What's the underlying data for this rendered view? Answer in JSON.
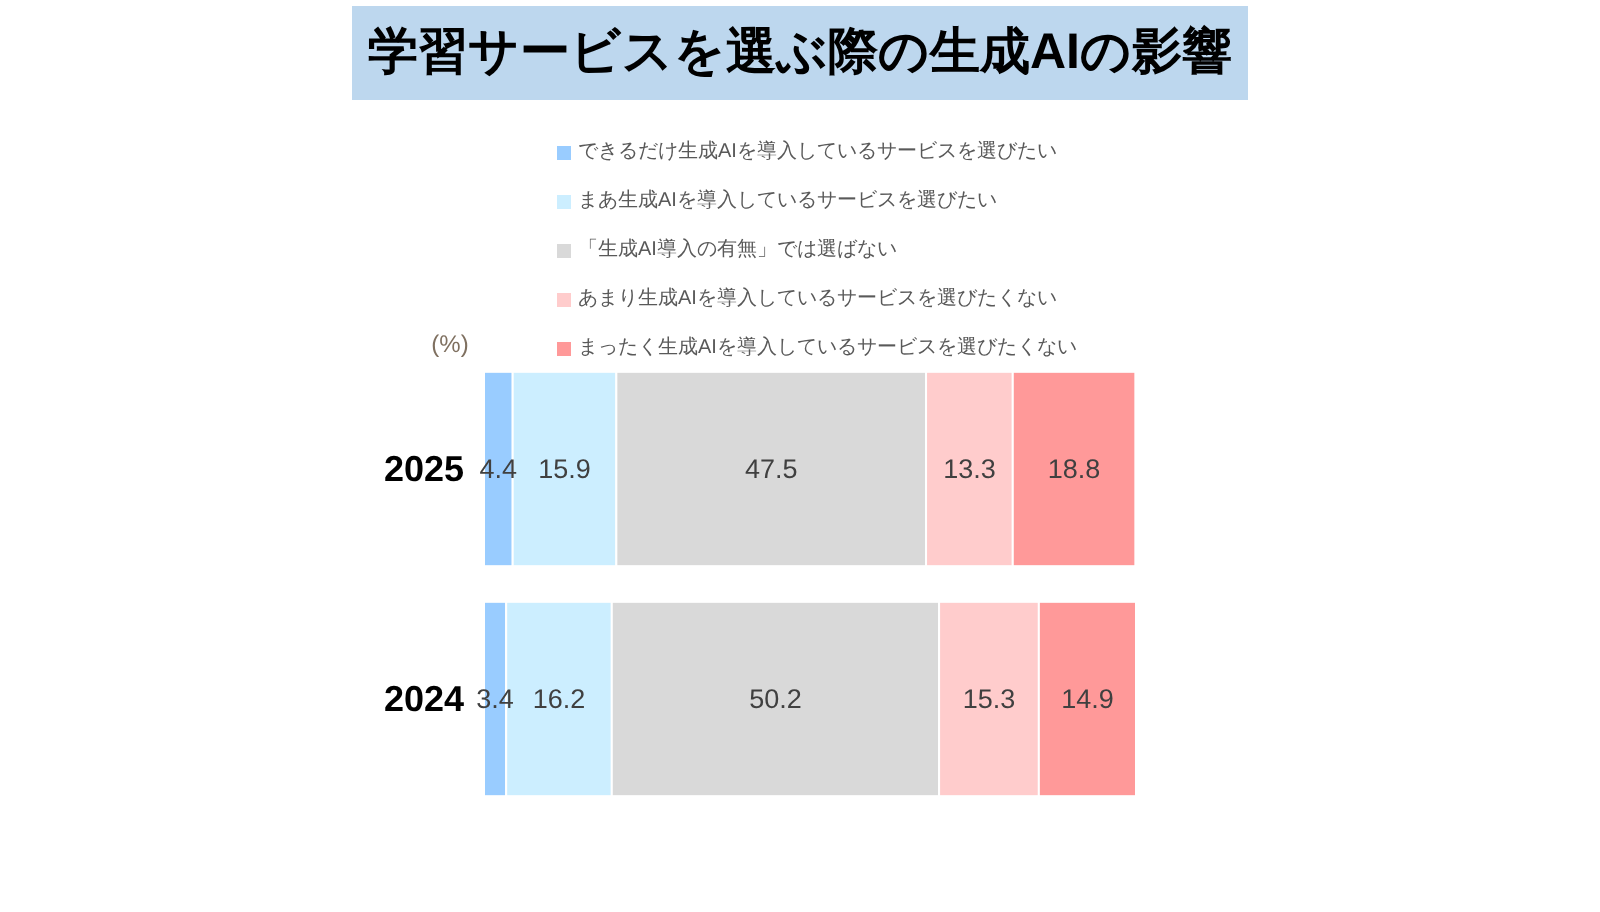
{
  "chart_data": {
    "type": "bar",
    "orientation": "horizontal",
    "stacked": true,
    "title": "学習サービスを選ぶ際の生成AIの影響",
    "annotations": [
      "(%)"
    ],
    "categories": [
      "2025",
      "2024"
    ],
    "xlim": [
      0,
      100
    ],
    "series": [
      {
        "name": "できるだけ生成AIを導入しているサービスを選びたい",
        "color": "#99ccff",
        "values": [
          4.4,
          3.4
        ]
      },
      {
        "name": "まあ生成AIを導入しているサービスを選びたい",
        "color": "#cceeff",
        "values": [
          15.9,
          16.2
        ]
      },
      {
        "name": "「生成AI導入の有無」では選ばない",
        "color": "#d9d9d9",
        "values": [
          47.5,
          50.2
        ]
      },
      {
        "name": "あまり生成AIを導入しているサービスを選びたくない",
        "color": "#ffcccc",
        "values": [
          13.3,
          15.3
        ]
      },
      {
        "name": "まったく生成AIを導入しているサービスを選びたくない",
        "color": "#ff9999",
        "values": [
          18.8,
          14.9
        ]
      }
    ],
    "data_labels": true,
    "legend": "top",
    "tick_labels": "y"
  }
}
